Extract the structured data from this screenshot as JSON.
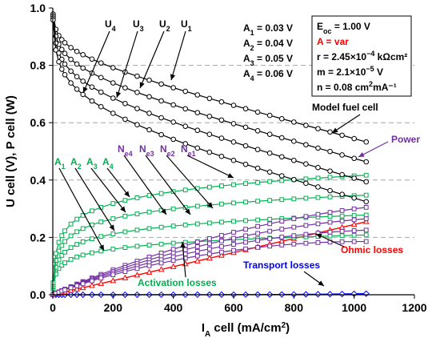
{
  "chart_data": {
    "type": "line",
    "xlabel": "I",
    "xlabel_sub": "A",
    "xlabel_rest": " cell (mA/cm",
    "xlabel_sup": "2",
    "xlabel_end": ")",
    "ylabel": "U cell (V), P cell (W)",
    "xlim": [
      0,
      1200
    ],
    "ylim": [
      0,
      1.0
    ],
    "xticks": [
      0,
      200,
      400,
      600,
      800,
      1000,
      1200
    ],
    "yticks": [
      0.0,
      0.2,
      0.4,
      0.6,
      0.8,
      1.0
    ],
    "xtick_labels": [
      "0",
      "200",
      "400",
      "600",
      "800",
      "1000",
      "1200"
    ],
    "ytick_labels": [
      "0.0",
      "0.2",
      "0.4",
      "0.6",
      "0.8",
      "1.0"
    ],
    "grid": "horizontal dashed at 0.2, 0.4, 0.6, 0.8",
    "parameters_left": [
      {
        "label": "A",
        "sub": "1",
        "value": " = 0.03 V"
      },
      {
        "label": "A",
        "sub": "2",
        "value": " = 0.04 V"
      },
      {
        "label": "A",
        "sub": "3",
        "value": " = 0.05 V"
      },
      {
        "label": "A",
        "sub": "4",
        "value": " = 0.06 V"
      }
    ],
    "parameters_box": [
      {
        "pre": "E",
        "sub": "oc",
        "post": " = 1.00 V",
        "sup": "",
        "tail": "",
        "color": "#000000"
      },
      {
        "pre": "A = var",
        "sub": "",
        "post": "",
        "sup": "",
        "tail": "",
        "color": "#ff0000"
      },
      {
        "pre": "r = 2.45×10",
        "sub": "",
        "post": "",
        "sup": "−4",
        "tail": " kΩcm²",
        "color": "#000000"
      },
      {
        "pre": "m = 2.1×10",
        "sub": "",
        "post": "",
        "sup": "−5",
        "tail": " V",
        "color": "#000000"
      },
      {
        "pre": "n = 0.08 cm",
        "sub": "",
        "post": "",
        "sup": "2",
        "tail": "mA⁻¹",
        "color": "#000000"
      }
    ],
    "annotations": {
      "model_fuel_cell": "Model fuel cell",
      "power": "Power",
      "ohmic_losses": "Ohmic losses",
      "transport_losses": "Transport losses",
      "activation_losses": "Activation losses"
    },
    "x_grid_values": [
      1,
      10,
      20,
      30,
      40,
      60,
      80,
      100,
      130,
      160,
      200,
      240,
      280,
      320,
      360,
      400,
      440,
      480,
      520,
      560,
      600,
      640,
      680,
      720,
      760,
      800,
      840,
      880,
      920,
      960,
      1000,
      1040
    ],
    "voltage_series": [
      {
        "name": "U",
        "sub": "1",
        "A": 0.03,
        "color": "#000000",
        "marker": "circle"
      },
      {
        "name": "U",
        "sub": "2",
        "A": 0.04,
        "color": "#000000",
        "marker": "circle"
      },
      {
        "name": "U",
        "sub": "3",
        "A": 0.05,
        "color": "#000000",
        "marker": "circle"
      },
      {
        "name": "U",
        "sub": "4",
        "A": 0.06,
        "color": "#000000",
        "marker": "circle"
      }
    ],
    "power_series": [
      {
        "name": "N",
        "sub": "e1",
        "A": 0.03,
        "color": "#7030a0",
        "marker": "square"
      },
      {
        "name": "N",
        "sub": "e2",
        "A": 0.04,
        "color": "#7030a0",
        "marker": "square"
      },
      {
        "name": "N",
        "sub": "e3",
        "A": 0.05,
        "color": "#7030a0",
        "marker": "square"
      },
      {
        "name": "N",
        "sub": "e4",
        "A": 0.06,
        "color": "#7030a0",
        "marker": "square"
      }
    ],
    "activation_series": [
      {
        "name": "A",
        "sub": "1",
        "A": 0.03,
        "color": "#00b050",
        "marker": "square"
      },
      {
        "name": "A",
        "sub": "2",
        "A": 0.04,
        "color": "#00b050",
        "marker": "square"
      },
      {
        "name": "A",
        "sub": "3",
        "A": 0.05,
        "color": "#00b050",
        "marker": "square"
      },
      {
        "name": "A",
        "sub": "4",
        "A": 0.06,
        "color": "#00b050",
        "marker": "square"
      }
    ],
    "ohmic_series": {
      "name": "Ohmic losses",
      "r": 0.000245,
      "color": "#ff0000",
      "marker": "triangle"
    },
    "transport_series": {
      "name": "Transport losses",
      "m": 2.1e-05,
      "n": 0.08,
      "color": "#0000ff",
      "marker": "diamond"
    },
    "model_params": {
      "Eoc": 1.0,
      "r": 0.000245,
      "m": 2.1e-05,
      "n": 0.08
    }
  },
  "colors": {
    "voltage": "#000000",
    "power": "#7030a0",
    "activation": "#00b050",
    "ohmic": "#ff0000",
    "transport": "#0000ff",
    "grid": "#a6a6a6"
  }
}
